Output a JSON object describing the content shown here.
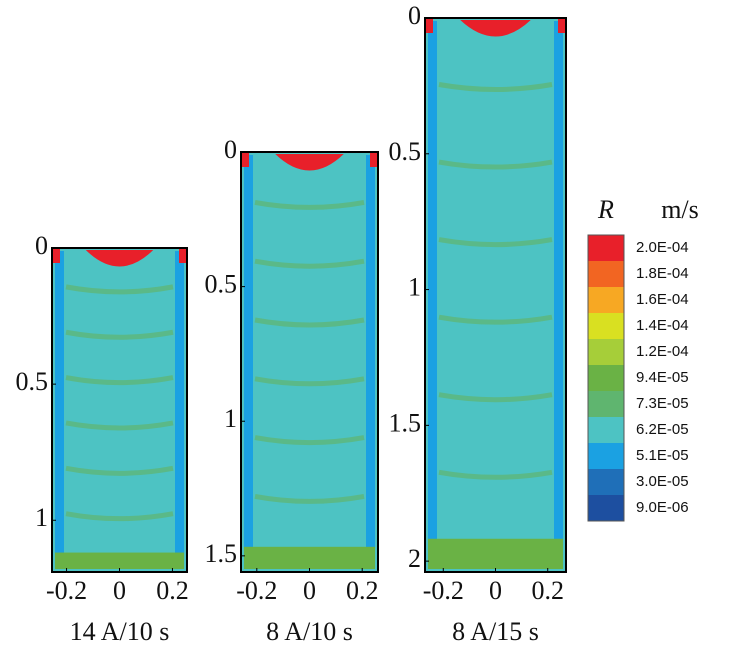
{
  "chart_data": [
    {
      "type": "contour",
      "xlabel": "14 A/10 s",
      "xlim": [
        -0.255,
        0.255
      ],
      "xticks": [
        -0.2,
        0,
        0.2
      ],
      "ylim": [
        0,
        1.19
      ],
      "yticks": [
        0,
        0.5,
        1
      ],
      "y_inverted": true
    },
    {
      "type": "contour",
      "xlabel": "8 A/10 s",
      "xlim": [
        -0.26,
        0.26
      ],
      "xticks": [
        -0.2,
        0,
        0.2
      ],
      "ylim": [
        0,
        1.56
      ],
      "yticks": [
        0,
        0.5,
        1,
        1.5
      ],
      "y_inverted": true
    },
    {
      "type": "contour",
      "xlabel": "8 A/15 s",
      "xlim": [
        -0.27,
        0.27
      ],
      "xticks": [
        -0.2,
        0,
        0.2
      ],
      "ylim": [
        0,
        2.04
      ],
      "yticks": [
        0,
        0.5,
        1,
        1.5,
        2
      ],
      "y_inverted": true
    }
  ],
  "colorbar": {
    "label": "R",
    "unit": "m/s",
    "levels": [
      {
        "value": 0.0002,
        "label": "2.0E-04"
      },
      {
        "value": 0.00018,
        "label": "1.8E-04"
      },
      {
        "value": 0.00016,
        "label": "1.6E-04"
      },
      {
        "value": 0.00014,
        "label": "1.4E-04"
      },
      {
        "value": 0.00012,
        "label": "1.2E-04"
      },
      {
        "value": 9.4e-05,
        "label": "9.4E-05"
      },
      {
        "value": 7.3e-05,
        "label": "7.3E-05"
      },
      {
        "value": 6.2e-05,
        "label": "6.2E-05"
      },
      {
        "value": 5.1e-05,
        "label": "5.1E-05"
      },
      {
        "value": 3e-05,
        "label": "3.0E-05"
      },
      {
        "value": 9e-06,
        "label": "9.0E-06"
      }
    ],
    "colors": [
      "#e8202a",
      "#f26522",
      "#f7a823",
      "#d9e021",
      "#a6ce39",
      "#6ab245",
      "#5fb56f",
      "#4dc3c3",
      "#1ba1e2",
      "#1f6fb8",
      "#1d4fa0"
    ]
  }
}
